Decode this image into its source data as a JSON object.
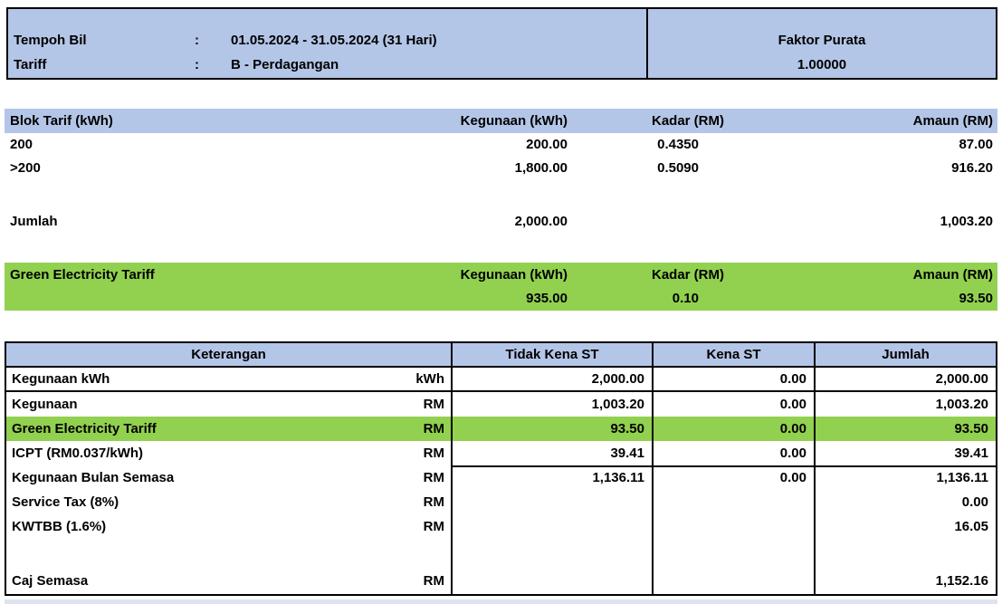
{
  "colors": {
    "header_blue": "#b4c6e7",
    "highlight_green": "#92d050",
    "bottom_strip": "#dde4ef",
    "border": "#000000"
  },
  "meta": {
    "colon": ":",
    "tempoh_bil_label": "Tempoh Bil",
    "tempoh_bil_value": "01.05.2024 - 31.05.2024 (31 Hari)",
    "tariff_label": "Tariff",
    "tariff_value": "B - Perdagangan",
    "faktor_purata_label": "Faktor Purata",
    "faktor_purata_value": "1.00000"
  },
  "blok_tarif": {
    "headers": {
      "blok": "Blok Tarif (kWh)",
      "kegunaan": "Kegunaan (kWh)",
      "kadar": "Kadar (RM)",
      "amaun": "Amaun (RM)"
    },
    "rows": [
      {
        "blok": "200",
        "kegunaan": "200.00",
        "kadar": "0.4350",
        "amaun": "87.00"
      },
      {
        "blok": ">200",
        "kegunaan": "1,800.00",
        "kadar": "0.5090",
        "amaun": "916.20"
      }
    ],
    "total": {
      "label": "Jumlah",
      "kegunaan": "2,000.00",
      "kadar": "",
      "amaun": "1,003.20"
    }
  },
  "green_tariff": {
    "title": "Green Electricity Tariff",
    "headers": {
      "kegunaan": "Kegunaan (kWh)",
      "kadar": "Kadar (RM)",
      "amaun": "Amaun (RM)"
    },
    "row": {
      "kegunaan": "935.00",
      "kadar": "0.10",
      "amaun": "93.50"
    }
  },
  "summary": {
    "headers": {
      "keterangan": "Keterangan",
      "tidak_kena_st": "Tidak Kena ST",
      "kena_st": "Kena ST",
      "jumlah": "Jumlah"
    },
    "rows": [
      {
        "label": "Kegunaan kWh",
        "unit": "kWh",
        "tidak": "2,000.00",
        "kena": "0.00",
        "jumlah": "2,000.00"
      },
      {
        "label": "Kegunaan",
        "unit": "RM",
        "tidak": "1,003.20",
        "kena": "0.00",
        "jumlah": "1,003.20"
      },
      {
        "label": "Green Electricity Tariff",
        "unit": "RM",
        "tidak": "93.50",
        "kena": "0.00",
        "jumlah": "93.50"
      },
      {
        "label": "ICPT (RM0.037/kWh)",
        "unit": "RM",
        "tidak": "39.41",
        "kena": "0.00",
        "jumlah": "39.41"
      },
      {
        "label": "Kegunaan Bulan Semasa",
        "unit": "RM",
        "tidak": "1,136.11",
        "kena": "0.00",
        "jumlah": "1,136.11"
      },
      {
        "label": "Service Tax (8%)",
        "unit": "RM",
        "tidak": "",
        "kena": "",
        "jumlah": "0.00"
      },
      {
        "label": "KWTBB (1.6%)",
        "unit": "RM",
        "tidak": "",
        "kena": "",
        "jumlah": "16.05"
      }
    ],
    "total": {
      "label": "Caj Semasa",
      "unit": "RM",
      "tidak": "",
      "kena": "",
      "jumlah": "1,152.16"
    }
  }
}
